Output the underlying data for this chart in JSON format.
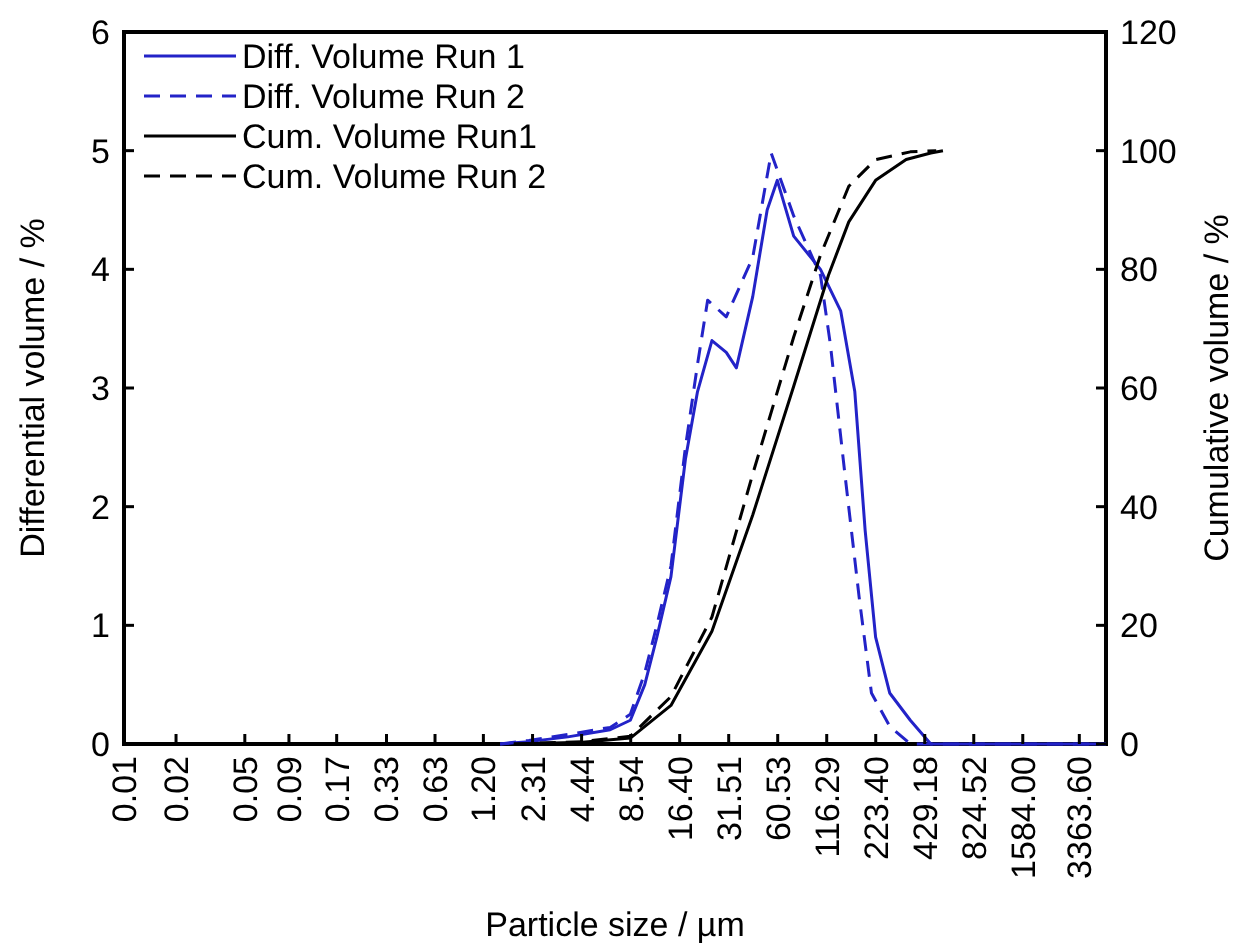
{
  "chart_data": {
    "type": "line",
    "xlabel": "Particle size / µm",
    "ylabel": "Differential volume / %",
    "y2label": "Cumulative volume / %",
    "log": "x",
    "xlim": [
      0.01,
      4800
    ],
    "xticks": [
      0.01,
      0.02,
      0.05,
      0.09,
      0.17,
      0.33,
      0.63,
      {
        "value": 1.2,
        "label": "1.20"
      },
      2.31,
      4.44,
      8.54,
      {
        "value": 16.4,
        "label": "16.40"
      },
      31.51,
      60.53,
      116.29,
      {
        "value": 223.4,
        "label": "223.40"
      },
      429.18,
      824.52,
      {
        "value": 1584,
        "label": "1584.00"
      },
      {
        "value": 3363.6,
        "label": "3363.60"
      }
    ],
    "ylim": [
      0,
      6
    ],
    "yticks": [
      0,
      1,
      2,
      3,
      4,
      5,
      6
    ],
    "y2lim": [
      0,
      120
    ],
    "y2ticks": [
      0,
      20,
      40,
      60,
      80,
      100,
      120
    ],
    "legend": "top left",
    "grid": false,
    "series": [
      {
        "name": "Diff. Volume Run 1",
        "color": "#2323c8",
        "line_style": "solid",
        "x": [
          1.5,
          2.2,
          3.7,
          6.5,
          8.5,
          10.3,
          12.1,
          14.6,
          17.7,
          20.8,
          25.2,
          30.5,
          34.9,
          43.4,
          52.6,
          60.2,
          74.9,
          107,
          140,
          169,
          194,
          223,
          269,
          354,
          465,
          4800
        ],
        "values": [
          0,
          0.02,
          0.06,
          0.12,
          0.2,
          0.5,
          0.9,
          1.41,
          2.4,
          2.97,
          3.4,
          3.3,
          3.17,
          3.77,
          4.5,
          4.75,
          4.28,
          4,
          3.65,
          2.97,
          1.8,
          0.9,
          0.43,
          0.2,
          0,
          0
        ]
      },
      {
        "name": "Diff. Volume Run 2",
        "color": "#2323c8",
        "line_style": "dashed",
        "x": [
          1.5,
          2.2,
          3.7,
          6.5,
          8.5,
          10.3,
          12.1,
          14.6,
          17.7,
          20.8,
          23.8,
          30.5,
          43.4,
          55.5,
          74.9,
          107,
          122,
          148,
          179,
          211,
          269,
          354,
          4800
        ],
        "values": [
          0,
          0.03,
          0.08,
          0.14,
          0.25,
          0.6,
          1,
          1.5,
          2.5,
          3.2,
          3.74,
          3.6,
          4.1,
          4.98,
          4.45,
          3.95,
          3.37,
          2.28,
          1.24,
          0.43,
          0.15,
          0,
          0
        ]
      },
      {
        "name": "Cum. Volume Run1",
        "color": "#000000",
        "line_style": "solid",
        "axis": "y2",
        "x": [
          1.8,
          4.5,
          8.5,
          14.6,
          25.2,
          43.4,
          74.9,
          119,
          156,
          223,
          335,
          465,
          547
        ],
        "values": [
          0,
          0.3,
          1,
          6.5,
          19,
          38.6,
          60.3,
          79,
          88,
          95,
          98.5,
          99.6,
          100
        ]
      },
      {
        "name": "Cum. Volume Run 2",
        "color": "#000000",
        "line_style": "dashed",
        "axis": "y2",
        "x": [
          1.8,
          4.5,
          8.5,
          14.6,
          25.2,
          43.4,
          74.9,
          107,
          156,
          223,
          354,
          500
        ],
        "values": [
          0,
          0.4,
          1.3,
          8,
          21.4,
          45.5,
          68.6,
          82.4,
          94,
          98.5,
          99.8,
          100
        ]
      }
    ]
  }
}
